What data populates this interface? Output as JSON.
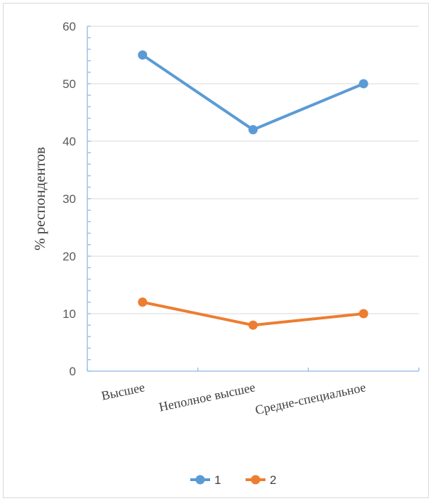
{
  "chart_data": {
    "type": "line",
    "ylabel": "% респондентов",
    "xlabel": "",
    "ylim": [
      0,
      60
    ],
    "yticks": [
      0,
      10,
      20,
      30,
      40,
      50,
      60
    ],
    "categories": [
      "Высшее",
      "Неполное высшее",
      "Средне-специальное"
    ],
    "series": [
      {
        "name": "1",
        "color": "#5b9bd5",
        "values": [
          55,
          42,
          50
        ]
      },
      {
        "name": "2",
        "color": "#ed7d31",
        "values": [
          12,
          8,
          10
        ]
      }
    ],
    "grid": true,
    "legend_position": "bottom"
  }
}
